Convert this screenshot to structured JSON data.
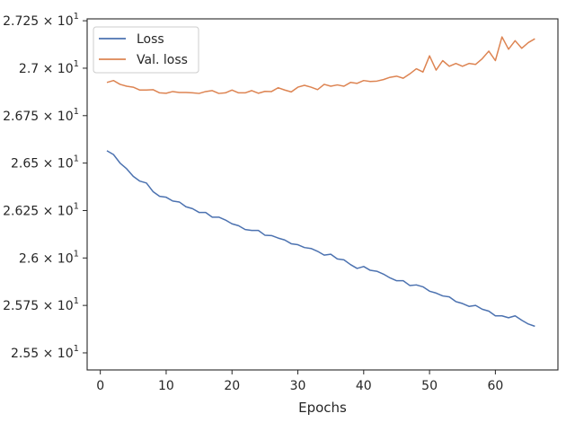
{
  "chart_data": {
    "type": "line",
    "title": "",
    "xlabel": "Epochs",
    "ylabel": "",
    "xlim": [
      -2,
      69.5
    ],
    "ylim": [
      25.41,
      27.26
    ],
    "x_ticks": [
      0,
      10,
      20,
      30,
      40,
      50,
      60
    ],
    "x_tick_labels": [
      "0",
      "10",
      "20",
      "30",
      "40",
      "50",
      "60"
    ],
    "y_ticks": [
      25.5,
      25.75,
      26.0,
      26.25,
      26.5,
      26.75,
      27.0,
      27.25
    ],
    "y_tick_labels": [
      {
        "mantissa": "2.55",
        "base": "10",
        "exp": "1"
      },
      {
        "mantissa": "2.575",
        "base": "10",
        "exp": "1"
      },
      {
        "mantissa": "2.6",
        "base": "10",
        "exp": "1"
      },
      {
        "mantissa": "2.625",
        "base": "10",
        "exp": "1"
      },
      {
        "mantissa": "2.65",
        "base": "10",
        "exp": "1"
      },
      {
        "mantissa": "2.675",
        "base": "10",
        "exp": "1"
      },
      {
        "mantissa": "2.7",
        "base": "10",
        "exp": "1"
      },
      {
        "mantissa": "2.725",
        "base": "10",
        "exp": "1"
      }
    ],
    "legend_position": "upper-left",
    "grid": false,
    "x": [
      1,
      2,
      3,
      4,
      5,
      6,
      7,
      8,
      9,
      10,
      11,
      12,
      13,
      14,
      15,
      16,
      17,
      18,
      19,
      20,
      21,
      22,
      23,
      24,
      25,
      26,
      27,
      28,
      29,
      30,
      31,
      32,
      33,
      34,
      35,
      36,
      37,
      38,
      39,
      40,
      41,
      42,
      43,
      44,
      45,
      46,
      47,
      48,
      49,
      50,
      51,
      52,
      53,
      54,
      55,
      56,
      57,
      58,
      59,
      60,
      61,
      62,
      63,
      64,
      65,
      66
    ],
    "series": [
      {
        "name": "Loss",
        "color": "#4c72b0",
        "values": [
          26.565,
          26.545,
          26.5,
          26.47,
          26.43,
          26.405,
          26.395,
          26.35,
          26.325,
          26.32,
          26.3,
          26.295,
          26.27,
          26.26,
          26.24,
          26.24,
          26.215,
          26.215,
          26.2,
          26.18,
          26.17,
          26.15,
          26.145,
          26.145,
          26.12,
          26.118,
          26.105,
          26.095,
          26.075,
          26.07,
          26.055,
          26.05,
          26.035,
          26.015,
          26.02,
          25.995,
          25.99,
          25.965,
          25.945,
          25.955,
          25.935,
          25.93,
          25.915,
          25.895,
          25.88,
          25.88,
          25.855,
          25.858,
          25.848,
          25.825,
          25.815,
          25.8,
          25.795,
          25.77,
          25.76,
          25.745,
          25.75,
          25.73,
          25.72,
          25.695,
          25.695,
          25.685,
          25.695,
          25.672,
          25.652,
          25.64
        ]
      },
      {
        "name": "Val. loss",
        "color": "#dd8452",
        "values": [
          26.925,
          26.935,
          26.915,
          26.905,
          26.9,
          26.885,
          26.885,
          26.887,
          26.87,
          26.868,
          26.877,
          26.872,
          26.872,
          26.87,
          26.867,
          26.877,
          26.882,
          26.867,
          26.87,
          26.885,
          26.87,
          26.87,
          26.882,
          26.868,
          26.878,
          26.877,
          26.897,
          26.885,
          26.875,
          26.9,
          26.91,
          26.9,
          26.887,
          26.915,
          26.905,
          26.912,
          26.905,
          26.925,
          26.92,
          26.935,
          26.93,
          26.932,
          26.94,
          26.952,
          26.958,
          26.947,
          26.97,
          26.997,
          26.98,
          27.065,
          26.99,
          27.04,
          27.01,
          27.025,
          27.01,
          27.025,
          27.02,
          27.05,
          27.09,
          27.04,
          27.165,
          27.1,
          27.145,
          27.105,
          27.135,
          27.155
        ]
      }
    ]
  }
}
